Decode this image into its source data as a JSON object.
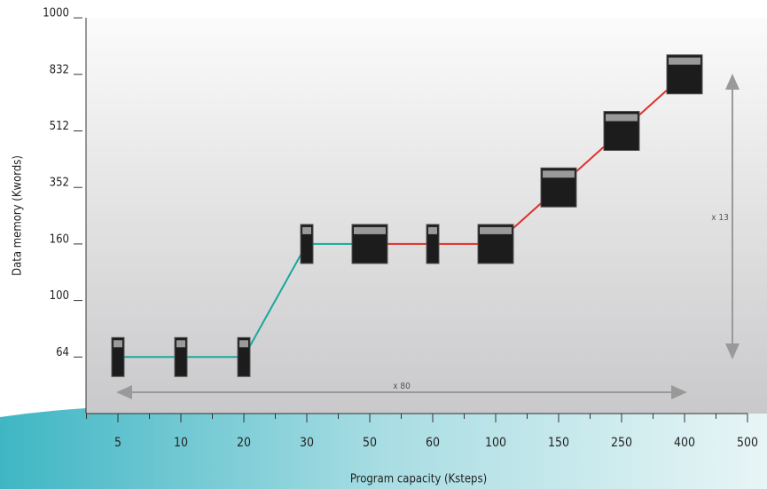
{
  "chart_data": {
    "type": "line",
    "xlabel": "Program capacity (Ksteps)",
    "ylabel": "Data memory (Kwords)",
    "categories": [
      "5",
      "10",
      "20",
      "30",
      "50",
      "60",
      "100",
      "150",
      "250",
      "400",
      "500"
    ],
    "yscale": "ordinal",
    "yticks": [
      64,
      100,
      160,
      352,
      512,
      832,
      1000
    ],
    "series": [
      {
        "color": "#1aa79a",
        "values": [
          64,
          64,
          64,
          160,
          160,
          null,
          null,
          null,
          null,
          null,
          null
        ]
      },
      {
        "color": "#e0302a",
        "values": [
          null,
          null,
          null,
          null,
          160,
          160,
          160,
          352,
          512,
          832,
          null
        ]
      }
    ],
    "annotations": [
      "x 80",
      "x 13"
    ]
  }
}
